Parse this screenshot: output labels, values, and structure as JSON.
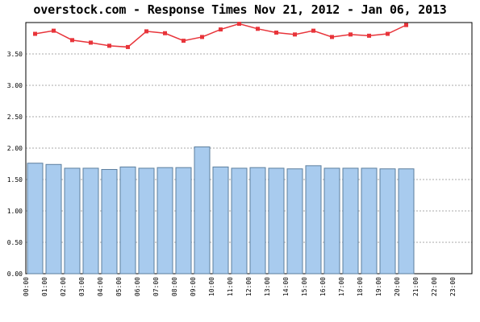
{
  "chart_data": {
    "type": "bar",
    "title": "overstock.com - Response Times Nov 21, 2012 - Jan 06, 2013",
    "xlabel": "",
    "ylabel": "",
    "ylim": [
      0,
      4.0
    ],
    "y_ticks": [
      "0.00",
      "0.50",
      "1.00",
      "1.50",
      "2.00",
      "2.50",
      "3.00",
      "3.50"
    ],
    "categories": [
      "00:00",
      "01:00",
      "02:00",
      "03:00",
      "04:00",
      "05:00",
      "06:00",
      "07:00",
      "08:00",
      "09:00",
      "10:00",
      "11:00",
      "12:00",
      "13:00",
      "14:00",
      "15:00",
      "16:00",
      "17:00",
      "18:00",
      "19:00",
      "20:00",
      "21:00",
      "22:00",
      "23:00"
    ],
    "series": [
      {
        "type": "bar",
        "color": "#a8cbee",
        "values": [
          1.76,
          1.74,
          1.68,
          1.68,
          1.66,
          1.7,
          1.68,
          1.69,
          1.69,
          2.02,
          1.7,
          1.68,
          1.69,
          1.68,
          1.67,
          1.72,
          1.68,
          1.68,
          1.68,
          1.67,
          1.67,
          null,
          null,
          null
        ]
      },
      {
        "type": "line",
        "color": "#e8343a",
        "values": [
          3.82,
          3.87,
          3.72,
          3.68,
          3.63,
          3.61,
          3.86,
          3.83,
          3.71,
          3.77,
          3.89,
          3.98,
          3.9,
          3.84,
          3.81,
          3.87,
          3.77,
          3.81,
          3.79,
          3.82,
          3.96,
          null,
          null,
          null
        ]
      }
    ],
    "grid": true,
    "grid_style": "dashed horizontal"
  }
}
